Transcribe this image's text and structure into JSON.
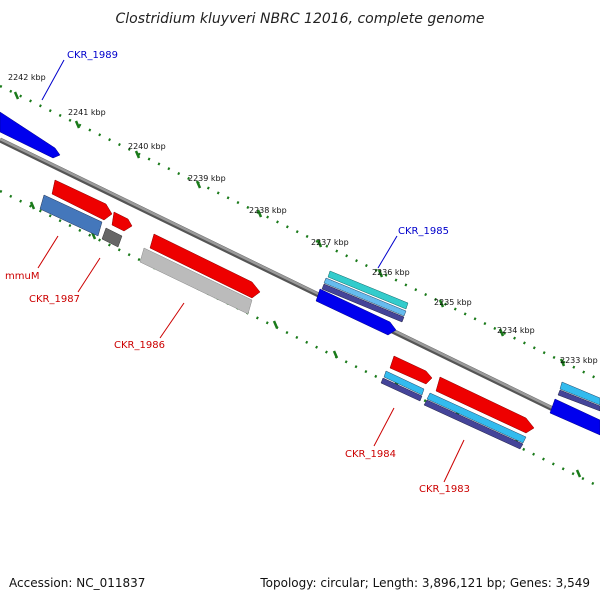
{
  "title": "Clostridium kluyveri NBRC 12016, complete genome",
  "footer": {
    "accession": "Accession: NC_011837",
    "topology": "Topology: circular; Length: 3,896,121 bp; Genes: 3,549"
  },
  "ticks": [
    "2242 kbp",
    "2241 kbp",
    "2240 kbp",
    "2239 kbp",
    "2238 kbp",
    "2237 kbp",
    "2236 kbp",
    "2235 kbp",
    "2234 kbp",
    "2233 kbp"
  ],
  "gene_labels": {
    "ckr1989": "CKR_1989",
    "ckr1985": "CKR_1985",
    "mmum": "mmuM",
    "ckr1987": "CKR_1987",
    "ckr1986": "CKR_1986",
    "ckr1984": "CKR_1984",
    "ckr1983": "CKR_1983"
  },
  "colors": {
    "label_blue": "#0000cc",
    "label_red": "#cc0000",
    "tick_green": "#1a7a1a",
    "backbone": "#888888"
  }
}
